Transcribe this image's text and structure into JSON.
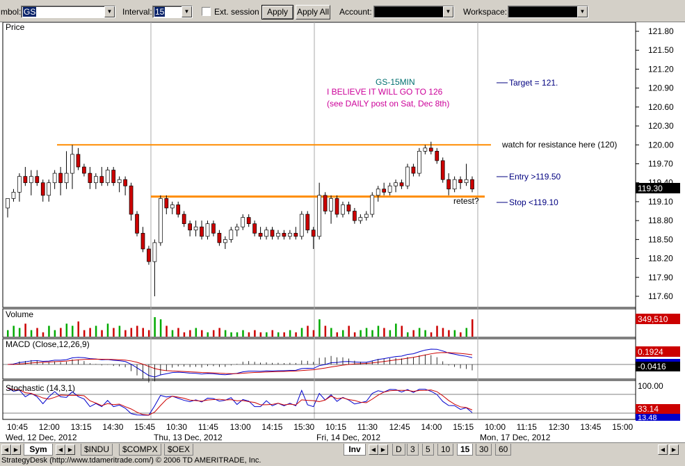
{
  "toolbar": {
    "symbol_label": "mbol:",
    "symbol_value": "GS",
    "interval_label": "Interval:",
    "interval_value": "15",
    "ext_session_label": "Ext. session",
    "apply_label": "Apply",
    "apply_all_label": "Apply All",
    "account_label": "Account:",
    "account_value": "",
    "workspace_label": "Workspace:",
    "workspace_value": ""
  },
  "chart": {
    "price_panel_title": "Price",
    "chart_title": "GS-15MIN",
    "belief_line": "I BELIEVE IT WILL GO TO 126",
    "see_line": "(see DAILY post on Sat, Dec 8th)",
    "target_label": "Target = 121.",
    "resistance_label": "watch for resistance here (120)",
    "entry_label": "Entry >119.50",
    "stop_label": "Stop <119.10",
    "retest_label": "retest?",
    "last_price": "119.30",
    "volume_title": "Volume",
    "volume_last": "349,510",
    "macd_title": "MACD (Close,12,26,9)",
    "macd_value": "0.1924",
    "macd_hist_value": "-0.0416",
    "stoch_title": "Stochastic (14,3,1)",
    "stoch_top": "100.00",
    "stoch_value": "33.14",
    "stoch_signal": "13.48",
    "colors": {
      "resistance": "#ff8c00",
      "up": "#ffffff",
      "down": "#cc0000",
      "volume_up": "#00aa00",
      "volume_down": "#cc0000",
      "annotation_blue": "#000080",
      "annotation_magenta": "#cc0099",
      "annotation_teal": "#007070"
    }
  },
  "tabs": {
    "sym": "Sym",
    "symbols": [
      "$INDU",
      "$COMPX",
      "$OEX"
    ],
    "inv": "Inv",
    "intervals": [
      "D",
      "3",
      "5",
      "10",
      "15",
      "30",
      "60"
    ]
  },
  "status": {
    "text": "StrategyDesk (http://www.tdameritrade.com/) © 2006 TD AMERITRADE, Inc."
  },
  "chart_data": {
    "type": "candlestick",
    "title": "GS-15MIN",
    "y_ticks": [
      121.8,
      121.5,
      121.2,
      120.9,
      120.6,
      120.3,
      120.0,
      119.7,
      119.4,
      119.1,
      118.8,
      118.5,
      118.2,
      117.9,
      117.6
    ],
    "ylim": [
      117.5,
      122.0
    ],
    "time_ticks": [
      "10:45",
      "12:00",
      "13:15",
      "14:30",
      "15:45",
      "10:30",
      "11:45",
      "13:00",
      "14:15",
      "15:30",
      "10:15",
      "11:30",
      "12:45",
      "14:00",
      "15:15",
      "10:00",
      "11:15",
      "12:30",
      "13:45",
      "15:00"
    ],
    "date_labels": [
      "Wed, 12 Dec, 2012",
      "Thu, 13 Dec, 2012",
      "Fri, 14 Dec, 2012",
      "Mon, 17 Dec, 2012"
    ],
    "levels": {
      "resistance": 120.0,
      "support": 119.18
    },
    "candles": [
      {
        "o": 119.0,
        "h": 119.15,
        "l": 118.85,
        "c": 119.15
      },
      {
        "o": 119.15,
        "h": 119.3,
        "l": 119.1,
        "c": 119.25
      },
      {
        "o": 119.25,
        "h": 119.55,
        "l": 119.1,
        "c": 119.5
      },
      {
        "o": 119.5,
        "h": 119.65,
        "l": 119.35,
        "c": 119.4
      },
      {
        "o": 119.4,
        "h": 119.6,
        "l": 119.2,
        "c": 119.5
      },
      {
        "o": 119.5,
        "h": 119.6,
        "l": 119.35,
        "c": 119.4
      },
      {
        "o": 119.4,
        "h": 119.45,
        "l": 119.1,
        "c": 119.2
      },
      {
        "o": 119.2,
        "h": 119.45,
        "l": 119.1,
        "c": 119.4
      },
      {
        "o": 119.4,
        "h": 119.6,
        "l": 119.3,
        "c": 119.55
      },
      {
        "o": 119.55,
        "h": 119.65,
        "l": 119.2,
        "c": 119.4
      },
      {
        "o": 119.4,
        "h": 119.9,
        "l": 119.3,
        "c": 119.55
      },
      {
        "o": 119.55,
        "h": 120.0,
        "l": 119.3,
        "c": 119.85
      },
      {
        "o": 119.85,
        "h": 119.95,
        "l": 119.6,
        "c": 119.65
      },
      {
        "o": 119.65,
        "h": 119.7,
        "l": 119.5,
        "c": 119.55
      },
      {
        "o": 119.55,
        "h": 119.65,
        "l": 119.3,
        "c": 119.4
      },
      {
        "o": 119.4,
        "h": 119.55,
        "l": 119.3,
        "c": 119.5
      },
      {
        "o": 119.5,
        "h": 119.65,
        "l": 119.35,
        "c": 119.4
      },
      {
        "o": 119.4,
        "h": 119.65,
        "l": 119.35,
        "c": 119.6
      },
      {
        "o": 119.6,
        "h": 119.65,
        "l": 119.35,
        "c": 119.4
      },
      {
        "o": 119.4,
        "h": 119.5,
        "l": 119.25,
        "c": 119.45
      },
      {
        "o": 119.45,
        "h": 119.5,
        "l": 119.2,
        "c": 119.35
      },
      {
        "o": 119.35,
        "h": 119.4,
        "l": 118.8,
        "c": 118.9
      },
      {
        "o": 118.9,
        "h": 118.95,
        "l": 118.55,
        "c": 118.6
      },
      {
        "o": 118.6,
        "h": 118.7,
        "l": 118.3,
        "c": 118.35
      },
      {
        "o": 118.35,
        "h": 118.4,
        "l": 118.1,
        "c": 118.15
      },
      {
        "o": 118.15,
        "h": 118.5,
        "l": 117.6,
        "c": 118.45
      },
      {
        "o": 118.45,
        "h": 119.2,
        "l": 118.4,
        "c": 119.15
      },
      {
        "o": 119.15,
        "h": 119.2,
        "l": 118.9,
        "c": 119.0
      },
      {
        "o": 119.0,
        "h": 119.1,
        "l": 118.9,
        "c": 119.05
      },
      {
        "o": 119.05,
        "h": 119.1,
        "l": 118.85,
        "c": 118.9
      },
      {
        "o": 118.9,
        "h": 118.95,
        "l": 118.7,
        "c": 118.75
      },
      {
        "o": 118.75,
        "h": 118.8,
        "l": 118.55,
        "c": 118.65
      },
      {
        "o": 118.65,
        "h": 118.8,
        "l": 118.55,
        "c": 118.7
      },
      {
        "o": 118.7,
        "h": 118.8,
        "l": 118.5,
        "c": 118.55
      },
      {
        "o": 118.55,
        "h": 118.8,
        "l": 118.5,
        "c": 118.75
      },
      {
        "o": 118.75,
        "h": 118.8,
        "l": 118.55,
        "c": 118.6
      },
      {
        "o": 118.6,
        "h": 118.65,
        "l": 118.4,
        "c": 118.45
      },
      {
        "o": 118.45,
        "h": 118.55,
        "l": 118.35,
        "c": 118.5
      },
      {
        "o": 118.5,
        "h": 118.7,
        "l": 118.45,
        "c": 118.65
      },
      {
        "o": 118.65,
        "h": 118.75,
        "l": 118.55,
        "c": 118.7
      },
      {
        "o": 118.7,
        "h": 118.9,
        "l": 118.65,
        "c": 118.85
      },
      {
        "o": 118.85,
        "h": 118.9,
        "l": 118.7,
        "c": 118.75
      },
      {
        "o": 118.75,
        "h": 118.8,
        "l": 118.55,
        "c": 118.6
      },
      {
        "o": 118.6,
        "h": 118.7,
        "l": 118.5,
        "c": 118.55
      },
      {
        "o": 118.55,
        "h": 118.7,
        "l": 118.5,
        "c": 118.65
      },
      {
        "o": 118.65,
        "h": 118.7,
        "l": 118.5,
        "c": 118.55
      },
      {
        "o": 118.55,
        "h": 118.65,
        "l": 118.5,
        "c": 118.6
      },
      {
        "o": 118.6,
        "h": 118.65,
        "l": 118.5,
        "c": 118.55
      },
      {
        "o": 118.55,
        "h": 118.65,
        "l": 118.5,
        "c": 118.6
      },
      {
        "o": 118.6,
        "h": 118.7,
        "l": 118.5,
        "c": 118.55
      },
      {
        "o": 118.55,
        "h": 118.95,
        "l": 118.5,
        "c": 118.9
      },
      {
        "o": 118.9,
        "h": 118.95,
        "l": 118.6,
        "c": 118.65
      },
      {
        "o": 118.65,
        "h": 118.7,
        "l": 118.35,
        "c": 118.55
      },
      {
        "o": 118.55,
        "h": 119.4,
        "l": 118.5,
        "c": 119.2
      },
      {
        "o": 119.2,
        "h": 119.25,
        "l": 118.9,
        "c": 118.95
      },
      {
        "o": 118.95,
        "h": 119.2,
        "l": 118.75,
        "c": 119.15
      },
      {
        "o": 119.15,
        "h": 119.2,
        "l": 118.85,
        "c": 118.9
      },
      {
        "o": 118.9,
        "h": 119.1,
        "l": 118.85,
        "c": 119.05
      },
      {
        "o": 119.05,
        "h": 119.1,
        "l": 118.9,
        "c": 118.95
      },
      {
        "o": 118.95,
        "h": 119.0,
        "l": 118.75,
        "c": 118.8
      },
      {
        "o": 118.8,
        "h": 118.9,
        "l": 118.75,
        "c": 118.85
      },
      {
        "o": 118.85,
        "h": 118.95,
        "l": 118.8,
        "c": 118.9
      },
      {
        "o": 118.9,
        "h": 119.25,
        "l": 118.85,
        "c": 119.2
      },
      {
        "o": 119.2,
        "h": 119.35,
        "l": 119.1,
        "c": 119.3
      },
      {
        "o": 119.3,
        "h": 119.4,
        "l": 119.2,
        "c": 119.25
      },
      {
        "o": 119.25,
        "h": 119.4,
        "l": 119.2,
        "c": 119.35
      },
      {
        "o": 119.35,
        "h": 119.45,
        "l": 119.25,
        "c": 119.4
      },
      {
        "o": 119.4,
        "h": 119.45,
        "l": 119.3,
        "c": 119.35
      },
      {
        "o": 119.35,
        "h": 119.7,
        "l": 119.3,
        "c": 119.65
      },
      {
        "o": 119.65,
        "h": 119.7,
        "l": 119.5,
        "c": 119.55
      },
      {
        "o": 119.55,
        "h": 119.95,
        "l": 119.5,
        "c": 119.9
      },
      {
        "o": 119.9,
        "h": 120.0,
        "l": 119.85,
        "c": 119.95
      },
      {
        "o": 119.95,
        "h": 120.05,
        "l": 119.85,
        "c": 119.9
      },
      {
        "o": 119.9,
        "h": 119.95,
        "l": 119.7,
        "c": 119.75
      },
      {
        "o": 119.75,
        "h": 119.8,
        "l": 119.4,
        "c": 119.45
      },
      {
        "o": 119.45,
        "h": 119.55,
        "l": 119.2,
        "c": 119.3
      },
      {
        "o": 119.3,
        "h": 119.5,
        "l": 119.25,
        "c": 119.45
      },
      {
        "o": 119.45,
        "h": 119.5,
        "l": 119.3,
        "c": 119.4
      },
      {
        "o": 119.4,
        "h": 119.7,
        "l": 119.35,
        "c": 119.45
      },
      {
        "o": 119.45,
        "h": 119.5,
        "l": 119.25,
        "c": 119.3
      }
    ],
    "volume": [
      3,
      5,
      4,
      6,
      3,
      4,
      2,
      5,
      3,
      4,
      6,
      5,
      7,
      3,
      4,
      5,
      3,
      6,
      4,
      5,
      3,
      4,
      5,
      4,
      3,
      9,
      8,
      5,
      3,
      4,
      2,
      3,
      4,
      3,
      2,
      3,
      4,
      3,
      2,
      2,
      3,
      2,
      3,
      2,
      2,
      3,
      2,
      2,
      3,
      2,
      4,
      5,
      3,
      8,
      5,
      4,
      2,
      3,
      5,
      2,
      3,
      4,
      3,
      5,
      4,
      3,
      6,
      5,
      2,
      3,
      4,
      3,
      2,
      5,
      4,
      3,
      3,
      2,
      4,
      8
    ]
  }
}
